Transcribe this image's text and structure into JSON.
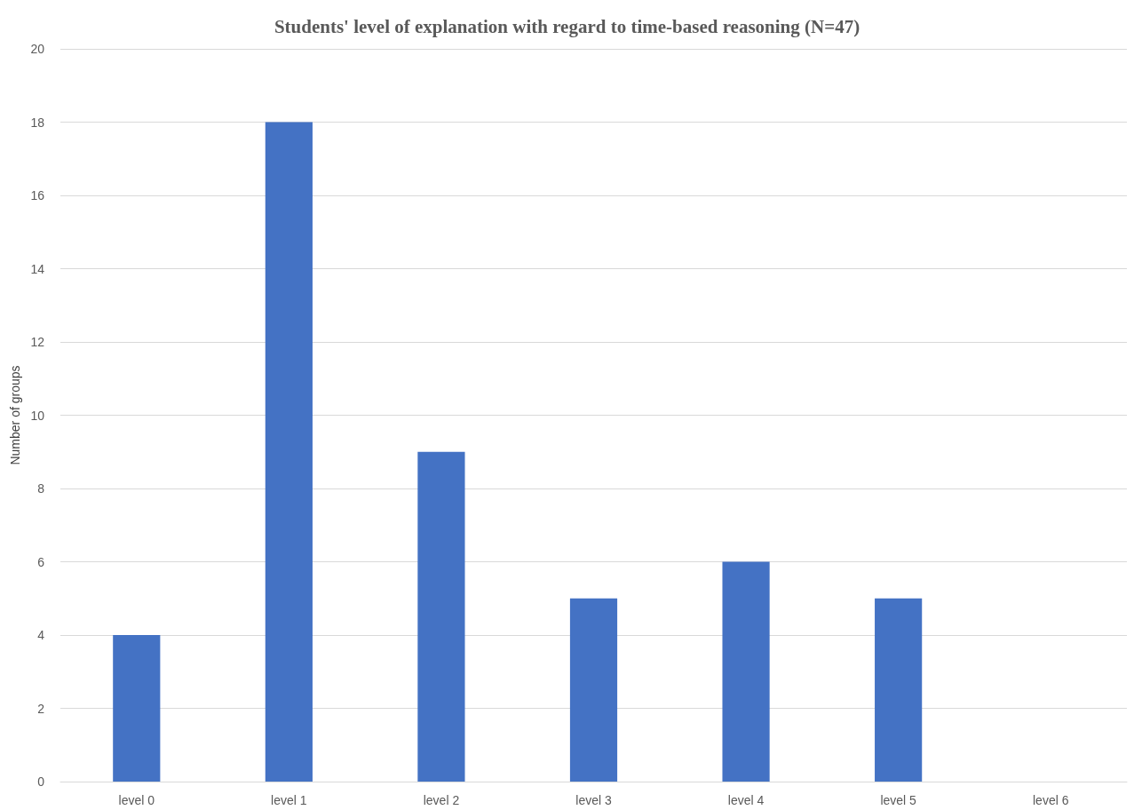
{
  "chart_data": {
    "type": "bar",
    "title": "Students' level of explanation with regard to time-based reasoning (N=47)",
    "ylabel": "Number of groups",
    "categories": [
      "level 0",
      "level 1",
      "level 2",
      "level 3",
      "level 4",
      "level 5",
      "level 6"
    ],
    "values": [
      4,
      18,
      9,
      5,
      6,
      5,
      0
    ],
    "color": "#4472c4",
    "ylim": [
      0,
      20
    ],
    "yticks": [
      0,
      2,
      4,
      6,
      8,
      10,
      12,
      14,
      16,
      18,
      20
    ],
    "grid": "y"
  }
}
